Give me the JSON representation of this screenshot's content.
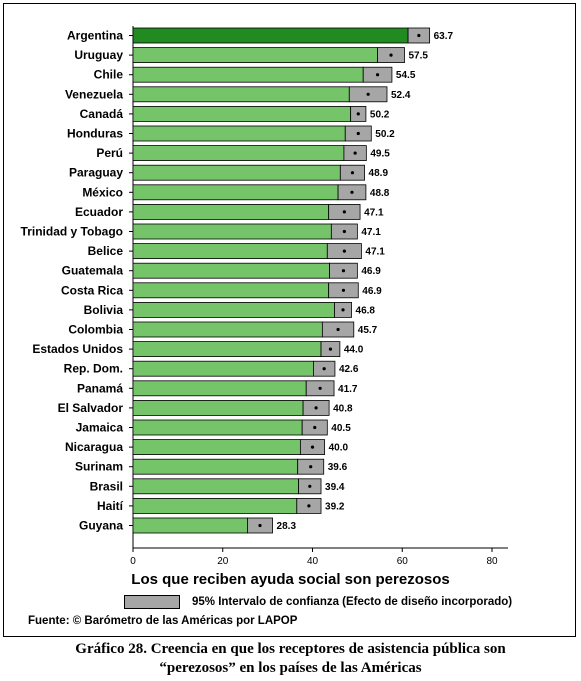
{
  "chart_data": {
    "type": "bar",
    "orientation": "horizontal",
    "categories": [
      "Argentina",
      "Uruguay",
      "Chile",
      "Venezuela",
      "Canadá",
      "Honduras",
      "Perú",
      "Paraguay",
      "México",
      "Ecuador",
      "Trinidad y Tobago",
      "Belice",
      "Guatemala",
      "Costa Rica",
      "Bolivia",
      "Colombia",
      "Estados Unidos",
      "Rep. Dom.",
      "Panamá",
      "El Salvador",
      "Jamaica",
      "Nicaragua",
      "Surinam",
      "Brasil",
      "Haití",
      "Guyana"
    ],
    "values": [
      63.7,
      57.5,
      54.5,
      52.4,
      50.2,
      50.2,
      49.5,
      48.9,
      48.8,
      47.1,
      47.1,
      47.1,
      46.9,
      46.9,
      46.8,
      45.7,
      44.0,
      42.6,
      41.7,
      40.8,
      40.5,
      40.0,
      39.6,
      39.4,
      39.2,
      28.3
    ],
    "value_labels": [
      "63.7",
      "57.5",
      "54.5",
      "52.4",
      "50.2",
      "50.2",
      "49.5",
      "48.9",
      "48.8",
      "47.1",
      "47.1",
      "47.1",
      "46.9",
      "46.9",
      "46.8",
      "45.7",
      "44.0",
      "42.6",
      "41.7",
      "40.8",
      "40.5",
      "40.0",
      "39.6",
      "39.4",
      "39.2",
      "28.3"
    ],
    "ci_low": [
      61.3,
      54.5,
      51.3,
      48.2,
      48.5,
      47.3,
      47.0,
      46.2,
      45.7,
      43.6,
      44.2,
      43.3,
      43.8,
      43.6,
      44.9,
      42.2,
      41.9,
      40.2,
      38.6,
      37.9,
      37.7,
      37.3,
      36.7,
      36.9,
      36.5,
      25.5
    ],
    "ci_high": [
      66.1,
      60.5,
      57.7,
      56.6,
      51.9,
      53.1,
      52.0,
      51.6,
      51.9,
      50.6,
      50.0,
      50.9,
      50.0,
      50.2,
      48.7,
      49.2,
      46.1,
      45.0,
      44.8,
      43.7,
      43.3,
      42.7,
      42.5,
      41.9,
      41.9,
      31.1
    ],
    "highlight_index": 0,
    "xlim": [
      0,
      80
    ],
    "xticks": [
      "0",
      "20",
      "40",
      "60",
      "80"
    ],
    "xlabel": "Los que reciben ayuda social son perezosos",
    "colors": {
      "bar": "#76c46a",
      "highlight": "#218a21",
      "ci": "#a6a6a6"
    }
  },
  "legend": {
    "label": "95% Intervalo de confianza (Efecto de diseño incorporado)"
  },
  "source": "Fuente: © Barómetro de las Américas por LAPOP",
  "caption": {
    "line1": "Gráfico 28.  Creencia en que los receptores de asistencia pública son",
    "line2": "“perezosos” en los países de las Américas"
  }
}
